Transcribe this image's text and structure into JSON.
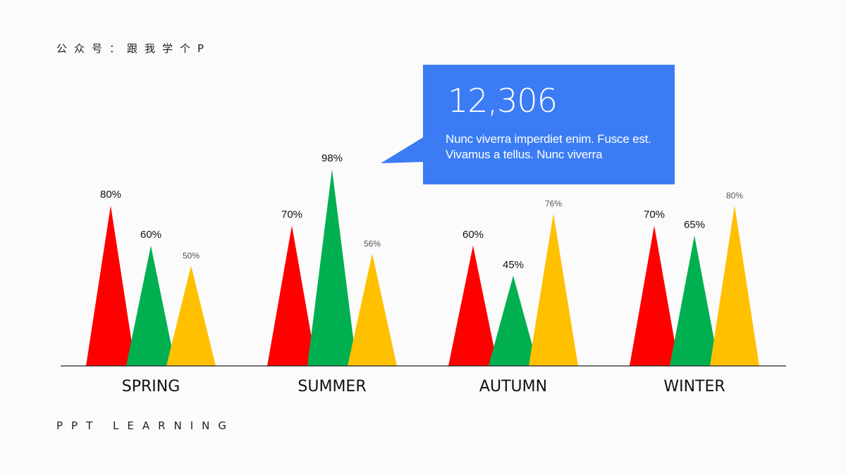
{
  "header": {
    "label": "公众号：跟我学个P"
  },
  "footer": {
    "label": "PPT LEARNING"
  },
  "callout": {
    "number": "12,306",
    "text": "Nunc viverra imperdiet enim. Fusce est. Vivamus a tellus. Nunc viverra"
  },
  "colors": {
    "series1": "#ff0000",
    "series2": "#00b050",
    "series3": "#ffc000",
    "accent": "#3b7cf5",
    "axis": "#222222"
  },
  "chart_data": {
    "type": "bar",
    "mark_shape": "triangle",
    "categories": [
      "SPRING",
      "SUMMER",
      "AUTUMN",
      "WINTER"
    ],
    "series": [
      {
        "values": [
          80,
          70,
          60,
          70
        ],
        "labels": [
          "80%",
          "70%",
          "60%",
          "70%"
        ]
      },
      {
        "values": [
          60,
          98,
          45,
          65
        ],
        "labels": [
          "60%",
          "98%",
          "45%",
          "65%"
        ]
      },
      {
        "values": [
          50,
          56,
          76,
          80
        ],
        "labels": [
          "50%",
          "56%",
          "76%",
          "80%"
        ]
      }
    ],
    "ylim": [
      0,
      100
    ],
    "grid": false,
    "legend": "none",
    "title": "",
    "xlabel": "",
    "ylabel": ""
  }
}
